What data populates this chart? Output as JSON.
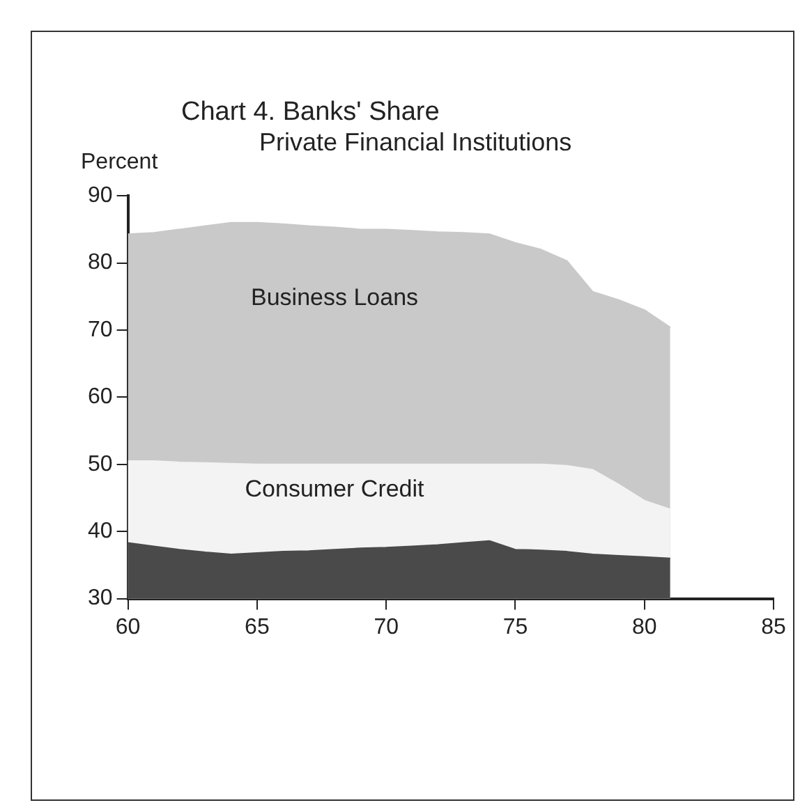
{
  "chart_data": {
    "type": "area",
    "title": "Chart 4. Banks' Share",
    "subtitle": "Private Financial Institutions",
    "ylabel": "Percent",
    "x": [
      60,
      61,
      62,
      63,
      64,
      65,
      66,
      67,
      68,
      69,
      70,
      71,
      72,
      73,
      74,
      75,
      76,
      77,
      78,
      79,
      80,
      81
    ],
    "series": [
      {
        "name": "Business Loans",
        "color": "#c9c9c9",
        "values": [
          84.3,
          84.5,
          85,
          85.5,
          86,
          86,
          85.8,
          85.5,
          85.3,
          85,
          85,
          84.8,
          84.6,
          84.5,
          84.3,
          83,
          82,
          80.3,
          75.7,
          74.5,
          73,
          70.4
        ]
      },
      {
        "name": "Consumer Credit",
        "color": "#f3f3f3",
        "values": [
          50.5,
          50.5,
          50.3,
          50.2,
          50.1,
          50,
          50,
          50,
          50,
          50,
          50,
          50,
          50,
          50,
          50,
          50,
          50,
          49.8,
          49.2,
          47,
          44.6,
          43.3
        ]
      },
      {
        "color": "#4a4a4a",
        "values": [
          38.3,
          37.8,
          37.3,
          36.9,
          36.6,
          36.8,
          37,
          37.1,
          37.3,
          37.5,
          37.6,
          37.8,
          38,
          38.3,
          38.6,
          37.3,
          37.2,
          37,
          36.6,
          36.4,
          36.2,
          36
        ]
      }
    ],
    "xlim": [
      60,
      85
    ],
    "xticks": [
      60,
      65,
      70,
      75,
      80,
      85
    ],
    "ylim": [
      30,
      90
    ],
    "yticks": [
      30,
      40,
      50,
      60,
      70,
      80,
      90
    ],
    "grid": false,
    "legend": false
  }
}
